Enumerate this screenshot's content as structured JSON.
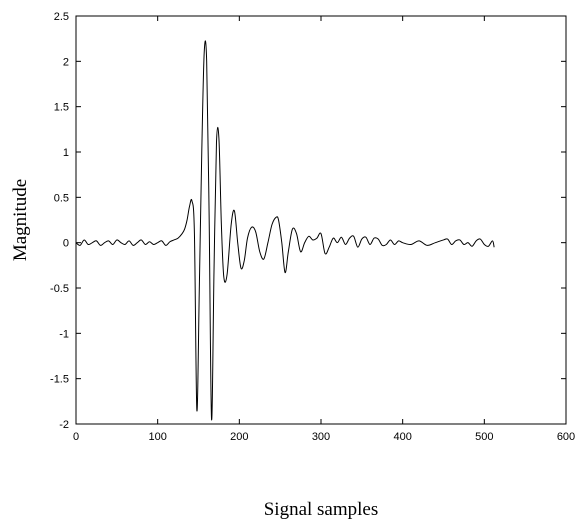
{
  "chart_data": {
    "type": "line",
    "title": "",
    "xlabel": "Signal samples",
    "ylabel": "Magnitude",
    "xlim": [
      0,
      600
    ],
    "ylim": [
      -2,
      2.5
    ],
    "x_ticks": [
      0,
      100,
      200,
      300,
      400,
      500,
      600
    ],
    "y_ticks": [
      2.5,
      2,
      1.5,
      1,
      0.5,
      0,
      -0.5,
      -1,
      -1.5,
      -2
    ],
    "x_tick_labels": [
      "0",
      "100",
      "200",
      "300",
      "400",
      "500",
      "600"
    ],
    "y_tick_labels": [
      "2.5",
      "2",
      "1.5",
      "1",
      "0.5",
      "0",
      "-0.5",
      "-1",
      "-1.5",
      "-2"
    ],
    "grid": false,
    "legend": "none",
    "line_color": "#000000",
    "series": [
      {
        "x": [
          0,
          5,
          10,
          15,
          20,
          25,
          30,
          35,
          40,
          45,
          50,
          55,
          60,
          65,
          70,
          75,
          80,
          85,
          90,
          95,
          100,
          105,
          110,
          115,
          120,
          125,
          130,
          133,
          136,
          139,
          142,
          145,
          148,
          151,
          154,
          157,
          160,
          163,
          166,
          169,
          172,
          175,
          178,
          181,
          185,
          190,
          194,
          198,
          202,
          206,
          210,
          215,
          220,
          225,
          230,
          235,
          240,
          245,
          248,
          252,
          256,
          260,
          265,
          270,
          275,
          280,
          285,
          290,
          295,
          300,
          305,
          310,
          315,
          320,
          325,
          330,
          335,
          340,
          345,
          350,
          355,
          360,
          365,
          370,
          375,
          380,
          385,
          390,
          395,
          400,
          410,
          420,
          430,
          440,
          450,
          455,
          460,
          465,
          470,
          475,
          480,
          485,
          490,
          495,
          500,
          505,
          510,
          512
        ],
        "y": [
          0.0,
          -0.03,
          0.03,
          -0.02,
          0.0,
          0.02,
          -0.03,
          0.0,
          0.02,
          -0.02,
          0.03,
          0.0,
          -0.02,
          0.02,
          -0.03,
          0.0,
          0.03,
          -0.02,
          0.01,
          -0.02,
          0.0,
          0.02,
          -0.03,
          0.01,
          0.03,
          0.05,
          0.1,
          0.15,
          0.25,
          0.4,
          0.46,
          0.1,
          -1.85,
          -0.5,
          1.0,
          2.1,
          2.0,
          0.3,
          -1.95,
          -0.3,
          1.1,
          1.15,
          0.2,
          -0.38,
          -0.35,
          0.2,
          0.35,
          0.0,
          -0.28,
          -0.2,
          0.05,
          0.17,
          0.12,
          -0.1,
          -0.18,
          0.0,
          0.2,
          0.28,
          0.25,
          0.0,
          -0.33,
          -0.1,
          0.15,
          0.1,
          -0.1,
          0.0,
          0.07,
          0.03,
          0.05,
          0.1,
          -0.12,
          -0.05,
          0.05,
          0.0,
          0.06,
          -0.02,
          0.05,
          0.07,
          -0.05,
          0.04,
          0.06,
          -0.02,
          0.05,
          0.04,
          -0.03,
          -0.02,
          0.03,
          -0.02,
          0.02,
          0.0,
          -0.02,
          0.02,
          -0.03,
          0.0,
          0.03,
          0.04,
          -0.02,
          0.02,
          0.03,
          -0.02,
          0.0,
          -0.04,
          0.02,
          0.04,
          -0.02,
          -0.04,
          0.02,
          -0.05
        ]
      }
    ]
  }
}
